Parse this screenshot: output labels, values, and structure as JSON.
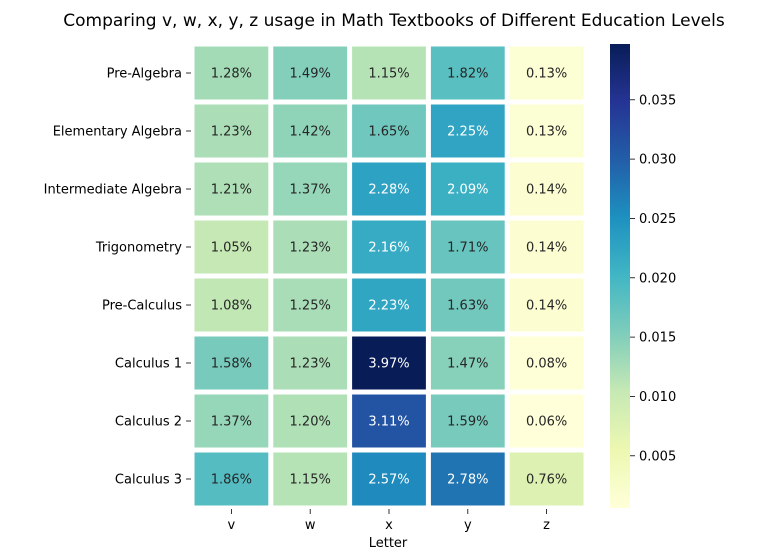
{
  "chart_data": {
    "type": "heatmap",
    "title": "Comparing v, w, x, y, z usage in Math Textbooks of Different Education Levels",
    "xlabel": "Letter",
    "ylabel": "",
    "columns": [
      "v",
      "w",
      "x",
      "y",
      "z"
    ],
    "rows": [
      "Pre-Algebra",
      "Elementary Algebra",
      "Intermediate Algebra",
      "Trigonometry",
      "Pre-Calculus",
      "Calculus 1",
      "Calculus 2",
      "Calculus 3"
    ],
    "values": [
      [
        0.0128,
        0.0149,
        0.0115,
        0.0182,
        0.0013
      ],
      [
        0.0123,
        0.0142,
        0.0165,
        0.0225,
        0.0013
      ],
      [
        0.0121,
        0.0137,
        0.0228,
        0.0209,
        0.0014
      ],
      [
        0.0105,
        0.0123,
        0.0216,
        0.0171,
        0.0014
      ],
      [
        0.0108,
        0.0125,
        0.0223,
        0.0163,
        0.0014
      ],
      [
        0.0158,
        0.0123,
        0.0397,
        0.0147,
        0.0008
      ],
      [
        0.0137,
        0.012,
        0.0311,
        0.0159,
        0.0006
      ],
      [
        0.0186,
        0.0115,
        0.0257,
        0.0278,
        0.0076
      ]
    ],
    "annotations": [
      [
        "1.28%",
        "1.49%",
        "1.15%",
        "1.82%",
        "0.13%"
      ],
      [
        "1.23%",
        "1.42%",
        "1.65%",
        "2.25%",
        "0.13%"
      ],
      [
        "1.21%",
        "1.37%",
        "2.28%",
        "2.09%",
        "0.14%"
      ],
      [
        "1.05%",
        "1.23%",
        "2.16%",
        "1.71%",
        "0.14%"
      ],
      [
        "1.08%",
        "1.25%",
        "2.23%",
        "1.63%",
        "0.14%"
      ],
      [
        "1.58%",
        "1.23%",
        "3.97%",
        "1.47%",
        "0.08%"
      ],
      [
        "1.37%",
        "1.20%",
        "3.11%",
        "1.59%",
        "0.06%"
      ],
      [
        "1.86%",
        "1.15%",
        "2.57%",
        "2.78%",
        "0.76%"
      ]
    ],
    "colormap": "YlGnBu",
    "colorbar": {
      "range": [
        0.0006,
        0.0397
      ],
      "ticks": [
        0.005,
        0.01,
        0.015,
        0.02,
        0.025,
        0.03,
        0.035
      ],
      "tick_labels": [
        "0.005",
        "0.010",
        "0.015",
        "0.020",
        "0.025",
        "0.030",
        "0.035"
      ]
    },
    "grid": false,
    "cell_separator_color": "#ffffff"
  }
}
